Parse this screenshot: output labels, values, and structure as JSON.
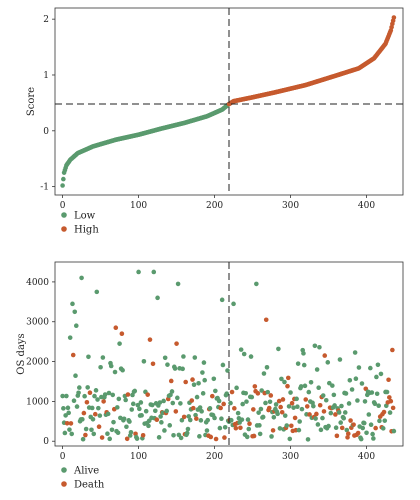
{
  "chart_data": [
    {
      "type": "scatter",
      "title": "",
      "xlabel": "",
      "ylabel": "Score",
      "xlim": [
        -10,
        448
      ],
      "ylim": [
        -1.15,
        2.2
      ],
      "xticks": [
        0,
        100,
        200,
        300,
        400
      ],
      "yticks": [
        -1,
        0,
        1,
        2
      ],
      "grid": false,
      "cutoff_x": 219,
      "cutoff_y": 0.48,
      "colors": {
        "Low": "#5a9a6e",
        "High": "#c65a2e"
      },
      "legend": {
        "placement": "bottom-left",
        "entries": [
          "Low",
          "High"
        ]
      },
      "n_points": 437,
      "sorted_curve": [
        [
          0,
          -0.98
        ],
        [
          2,
          -0.75
        ],
        [
          5,
          -0.62
        ],
        [
          10,
          -0.52
        ],
        [
          20,
          -0.4
        ],
        [
          40,
          -0.28
        ],
        [
          70,
          -0.16
        ],
        [
          100,
          -0.07
        ],
        [
          130,
          0.04
        ],
        [
          160,
          0.14
        ],
        [
          190,
          0.26
        ],
        [
          210,
          0.38
        ],
        [
          218,
          0.47
        ],
        [
          225,
          0.53
        ],
        [
          250,
          0.6
        ],
        [
          280,
          0.69
        ],
        [
          320,
          0.82
        ],
        [
          360,
          0.99
        ],
        [
          390,
          1.12
        ],
        [
          410,
          1.3
        ],
        [
          425,
          1.56
        ],
        [
          432,
          1.8
        ],
        [
          436,
          2.03
        ]
      ]
    },
    {
      "type": "scatter",
      "title": "",
      "xlabel": "",
      "ylabel": "OS days",
      "xlim": [
        -10,
        448
      ],
      "ylim": [
        -120,
        4500
      ],
      "xticks": [
        0,
        100,
        200,
        300,
        400
      ],
      "yticks": [
        0,
        1000,
        2000,
        3000,
        4000
      ],
      "grid": false,
      "cutoff_x": 219,
      "colors": {
        "Alive": "#5a9a6e",
        "Death": "#c65a2e"
      },
      "legend": {
        "placement": "bottom-left",
        "entries": [
          "Alive",
          "Death"
        ]
      },
      "notable_points": [
        {
          "x": 25,
          "y": 4100,
          "status": "Alive"
        },
        {
          "x": 45,
          "y": 3750,
          "status": "Alive"
        },
        {
          "x": 13,
          "y": 3450,
          "status": "Alive"
        },
        {
          "x": 16,
          "y": 3250,
          "status": "Alive"
        },
        {
          "x": 18,
          "y": 2900,
          "status": "Alive"
        },
        {
          "x": 10,
          "y": 2600,
          "status": "Alive"
        },
        {
          "x": 70,
          "y": 2850,
          "status": "Death"
        },
        {
          "x": 78,
          "y": 2700,
          "status": "Death"
        },
        {
          "x": 100,
          "y": 4250,
          "status": "Alive"
        },
        {
          "x": 120,
          "y": 4250,
          "status": "Alive"
        },
        {
          "x": 150,
          "y": 4050,
          "status": "Alive"
        },
        {
          "x": 152,
          "y": 3950,
          "status": "Alive"
        },
        {
          "x": 125,
          "y": 3600,
          "status": "Alive"
        },
        {
          "x": 210,
          "y": 3550,
          "status": "Alive"
        },
        {
          "x": 255,
          "y": 3950,
          "status": "Alive"
        },
        {
          "x": 268,
          "y": 3050,
          "status": "Death"
        },
        {
          "x": 225,
          "y": 3450,
          "status": "Alive"
        },
        {
          "x": 235,
          "y": 2300,
          "status": "Alive"
        },
        {
          "x": 115,
          "y": 2550,
          "status": "Death"
        },
        {
          "x": 150,
          "y": 2450,
          "status": "Death"
        },
        {
          "x": 75,
          "y": 2450,
          "status": "Alive"
        },
        {
          "x": 345,
          "y": 2150,
          "status": "Death"
        },
        {
          "x": 335,
          "y": 1800,
          "status": "Alive"
        },
        {
          "x": 390,
          "y": 1850,
          "status": "Alive"
        },
        {
          "x": 430,
          "y": 1100,
          "status": "Death"
        },
        {
          "x": 420,
          "y": 350,
          "status": "Death"
        },
        {
          "x": 398,
          "y": 1000,
          "status": "Alive"
        }
      ]
    }
  ]
}
